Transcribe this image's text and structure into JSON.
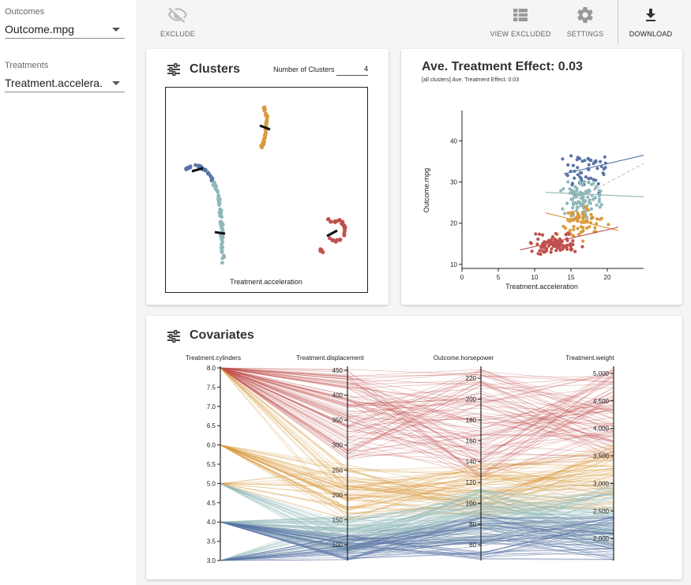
{
  "sidebar": {
    "outcomes_label": "Outcomes",
    "outcome_value": "Outcome.mpg",
    "treatments_label": "Treatments",
    "treatment_value": "Treatment.accelera..."
  },
  "toolbar": {
    "exclude_label": "EXCLUDE",
    "view_excluded_label": "VIEW EXCLUDED",
    "settings_label": "SETTINGS",
    "download_label": "DOWNLOAD",
    "icons": [
      "eye-off-icon",
      "table-icon",
      "gear-icon",
      "download-icon"
    ]
  },
  "clusters_card": {
    "title": "Clusters",
    "num_clusters_label": "Number of Clusters",
    "num_clusters_value": "4",
    "x_label": "Treatment.acceleration"
  },
  "ate_card": {
    "title": "Ave. Treatment Effect: 0.03",
    "subtitle": "[all clusters] Ave. Treatment Effect: 0.03"
  },
  "covariates_card": {
    "title": "Covariates",
    "axes": [
      {
        "name": "Treatment.cylinders",
        "ticks": [
          "8.0",
          "7.5",
          "7.0",
          "6.5",
          "6.0",
          "5.5",
          "5.0",
          "4.5",
          "4.0",
          "3.5",
          "3.0"
        ]
      },
      {
        "name": "Treatment.displacement",
        "ticks": [
          "450",
          "400",
          "350",
          "300",
          "250",
          "200",
          "150",
          "100"
        ]
      },
      {
        "name": "Outcome.horsepower",
        "ticks": [
          "220",
          "200",
          "180",
          "160",
          "140",
          "120",
          "100",
          "80",
          "60"
        ]
      },
      {
        "name": "Treatment.weight",
        "ticks": [
          "5,000",
          "4,500",
          "4,000",
          "3,500",
          "3,000",
          "2,500",
          "2,000"
        ]
      }
    ]
  },
  "colors": {
    "blue": "#5a74a6",
    "teal": "#8fb8b8",
    "orange": "#d99a3e",
    "red": "#c0504d"
  },
  "chart_data": {
    "type": "scatter",
    "title": "Ave. Treatment Effect: 0.03",
    "xlabel": "Treatment.acceleration",
    "ylabel": "Outcome.mpg",
    "xlim": [
      0,
      25
    ],
    "ylim": [
      9,
      47
    ],
    "x_ticks": [
      "0",
      "5",
      "10",
      "15",
      "20"
    ],
    "y_ticks": [
      "10",
      "20",
      "30",
      "40"
    ],
    "series": [
      {
        "name": "cluster-blue",
        "color": "#5a74a6",
        "trend": [
          [
            14,
            32
          ],
          [
            25,
            36.5
          ]
        ],
        "center": [
          16.5,
          33
        ],
        "spread": [
          3,
          4.5
        ],
        "n": 55
      },
      {
        "name": "cluster-teal",
        "color": "#8fb8b8",
        "trend": [
          [
            11.5,
            27.5
          ],
          [
            25,
            26.4
          ]
        ],
        "center": [
          16.5,
          26
        ],
        "spread": [
          2.6,
          4
        ],
        "n": 100
      },
      {
        "name": "cluster-orange",
        "color": "#d99a3e",
        "trend": [
          [
            11.5,
            22.5
          ],
          [
            21.5,
            18.2
          ]
        ],
        "center": [
          16.5,
          20
        ],
        "spread": [
          2.5,
          3.2
        ],
        "n": 65
      },
      {
        "name": "cluster-red",
        "color": "#c0504d",
        "trend": [
          [
            8,
            13.5
          ],
          [
            21.5,
            19
          ]
        ],
        "center": [
          13,
          14.8
        ],
        "spread": [
          2.6,
          2.2
        ],
        "n": 95
      }
    ]
  }
}
